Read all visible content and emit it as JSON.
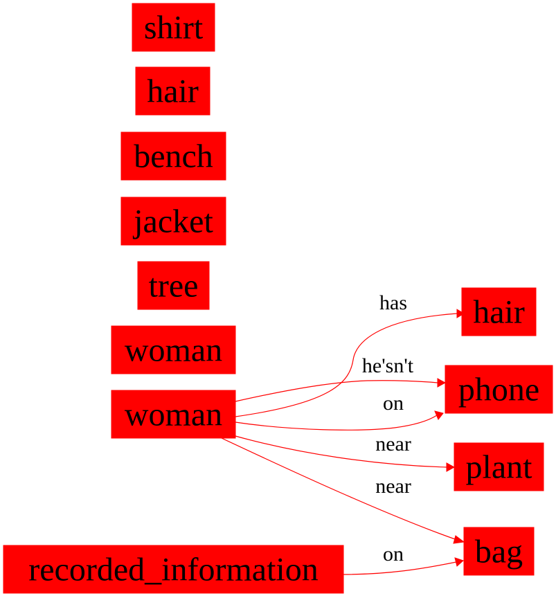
{
  "colors": {
    "node_fill": "#ff0000",
    "edge": "#ff0000",
    "text": "#000000",
    "background": "#ffffff"
  },
  "nodes": [
    {
      "id": "n_shirt",
      "label": "shirt"
    },
    {
      "id": "n_hair_top",
      "label": "hair"
    },
    {
      "id": "n_bench",
      "label": "bench"
    },
    {
      "id": "n_jacket",
      "label": "jacket"
    },
    {
      "id": "n_tree",
      "label": "tree"
    },
    {
      "id": "n_woman_1",
      "label": "woman"
    },
    {
      "id": "n_woman_2",
      "label": "woman"
    },
    {
      "id": "n_recorded",
      "label": "recorded_information"
    },
    {
      "id": "n_hair_right",
      "label": "hair"
    },
    {
      "id": "n_phone",
      "label": "phone"
    },
    {
      "id": "n_plant",
      "label": "plant"
    },
    {
      "id": "n_bag",
      "label": "bag"
    }
  ],
  "edges": [
    {
      "id": "e_has",
      "from": "n_woman_2",
      "to": "n_hair_right",
      "label": "has"
    },
    {
      "id": "e_hesnt",
      "from": "n_woman_2",
      "to": "n_phone",
      "label": "he'sn't"
    },
    {
      "id": "e_on_phone",
      "from": "n_woman_2",
      "to": "n_phone",
      "label": "on"
    },
    {
      "id": "e_near_plant",
      "from": "n_woman_2",
      "to": "n_plant",
      "label": "near"
    },
    {
      "id": "e_near_bag",
      "from": "n_woman_2",
      "to": "n_bag",
      "label": "near"
    },
    {
      "id": "e_on_bag",
      "from": "n_recorded",
      "to": "n_bag",
      "label": "on"
    }
  ]
}
